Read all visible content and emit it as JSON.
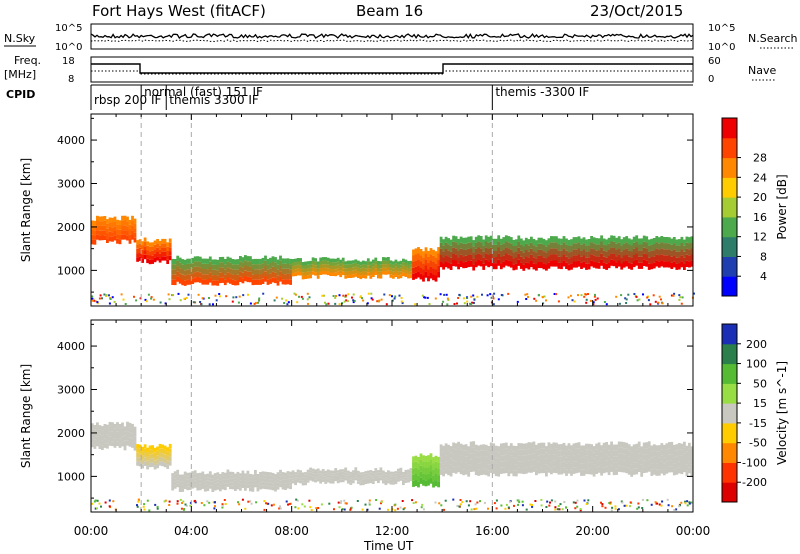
{
  "header": {
    "station": "Fort Hays West (fitACF)",
    "beam": "Beam 16",
    "date": "23/Oct/2015"
  },
  "left_labels": {
    "nsky": "N.Sky",
    "freq_line1": "Freq.",
    "freq_line2": "[MHz]",
    "cpid": "CPID"
  },
  "right_labels": {
    "nsearch": "N.Search",
    "nave": "Nave"
  },
  "noise_axis": {
    "left_top": "10^5",
    "left_bottom": "10^0",
    "right_top": "10^5",
    "right_bottom": "10^0"
  },
  "freq_axis": {
    "left_top": "18",
    "left_bottom": "8",
    "right_top": "60",
    "right_bottom": "0"
  },
  "cpid_segments": [
    {
      "label": "rbsp 200 IF",
      "start_h": 0.0,
      "row": 2
    },
    {
      "label": "normal (fast) 151 IF",
      "start_h": 2.0,
      "row": 1
    },
    {
      "label": "themis 3300 IF",
      "start_h": 3.0,
      "row": 2
    },
    {
      "label": "themis -3300 IF",
      "start_h": 16.0,
      "row": 1
    }
  ],
  "chart_data": {
    "type": "heatmap",
    "xlabel": "Time UT",
    "x_ticks": [
      "00:00",
      "04:00",
      "08:00",
      "12:00",
      "16:00",
      "20:00",
      "00:00"
    ],
    "xlim_hours": [
      0,
      24
    ],
    "panels": [
      {
        "name": "power",
        "ylabel": "Slant Range [km]",
        "ylim": [
          180,
          4600
        ],
        "y_ticks": [
          1000,
          2000,
          3000,
          4000
        ],
        "colorbar": {
          "label": "Power [dB]",
          "ticks": [
            "4",
            "8",
            "12",
            "16",
            "20",
            "24",
            "28"
          ],
          "colors": [
            "#0000ff",
            "#1f3fb0",
            "#2e7d6b",
            "#4caa4c",
            "#a6cc33",
            "#ffcc00",
            "#ff8800",
            "#ff4400",
            "#ee0000"
          ]
        },
        "bands": [
          {
            "t0": 0.0,
            "t1": 1.8,
            "r0": 1650,
            "r1": 2200,
            "c0": "#ff4400",
            "c1": "#ff8800"
          },
          {
            "t0": 1.8,
            "t1": 3.2,
            "r0": 1200,
            "r1": 1700,
            "c0": "#ee0000",
            "c1": "#ff8800"
          },
          {
            "t0": 3.2,
            "t1": 8.0,
            "r0": 700,
            "r1": 1300,
            "c0": "#ff4400",
            "c1": "#4caa4c"
          },
          {
            "t0": 8.0,
            "t1": 12.8,
            "r0": 850,
            "r1": 1250,
            "c0": "#ff8800",
            "c1": "#4caa4c"
          },
          {
            "t0": 12.8,
            "t1": 13.9,
            "r0": 800,
            "r1": 1500,
            "c0": "#ee0000",
            "c1": "#ff8800"
          },
          {
            "t0": 13.9,
            "t1": 24.0,
            "r0": 1050,
            "r1": 1750,
            "c0": "#ee0000",
            "c1": "#4caa4c"
          }
        ]
      },
      {
        "name": "velocity",
        "ylabel": "Slant Range [km]",
        "ylim": [
          180,
          4600
        ],
        "y_ticks": [
          1000,
          2000,
          3000,
          4000
        ],
        "colorbar": {
          "label": "Velocity [m s^-1]",
          "ticks": [
            "200",
            "100",
            "50",
            "15",
            "-15",
            "-50",
            "-100",
            "-200"
          ],
          "colors": [
            "#1a2fb5",
            "#2a7f4a",
            "#55bb33",
            "#99dd44",
            "#c8c8c0",
            "#ffcc00",
            "#ff8800",
            "#ff3300",
            "#dd0000"
          ]
        },
        "bands": [
          {
            "t0": 0.0,
            "t1": 1.8,
            "r0": 1650,
            "r1": 2200,
            "c0": "#c8c8c0",
            "c1": "#c8c8c0"
          },
          {
            "t0": 1.8,
            "t1": 3.2,
            "r0": 1200,
            "r1": 1700,
            "c0": "#c8c8c0",
            "c1": "#ffcc00"
          },
          {
            "t0": 3.2,
            "t1": 8.0,
            "r0": 700,
            "r1": 1100,
            "c0": "#c8c8c0",
            "c1": "#c8c8c0"
          },
          {
            "t0": 8.0,
            "t1": 12.8,
            "r0": 850,
            "r1": 1150,
            "c0": "#c8c8c0",
            "c1": "#c8c8c0"
          },
          {
            "t0": 12.8,
            "t1": 13.9,
            "r0": 800,
            "r1": 1500,
            "c0": "#55bb33",
            "c1": "#99dd44"
          },
          {
            "t0": 13.9,
            "t1": 24.0,
            "r0": 1050,
            "r1": 1750,
            "c0": "#c8c8c0",
            "c1": "#c8c8c0"
          }
        ]
      }
    ]
  }
}
